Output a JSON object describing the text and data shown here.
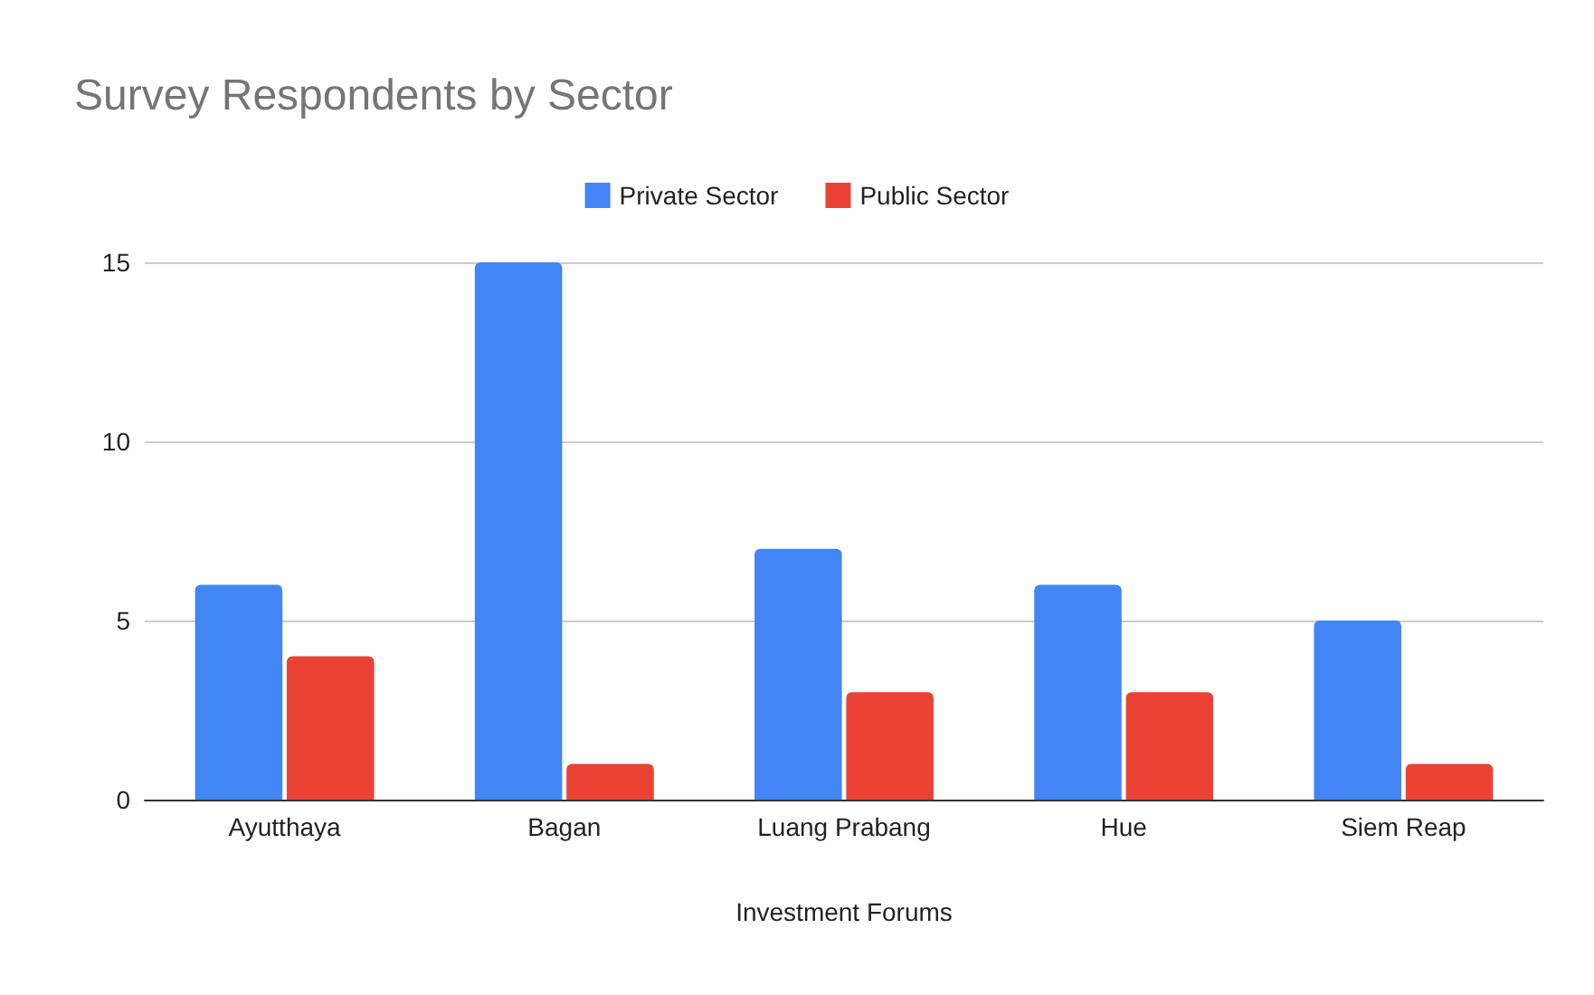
{
  "chart_data": {
    "type": "bar",
    "title": "Survey Respondents by Sector",
    "xlabel": "Investment Forums",
    "categories": [
      "Ayutthaya",
      "Bagan",
      "Luang Prabang",
      "Hue",
      "Siem Reap"
    ],
    "series": [
      {
        "name": "Private Sector",
        "color": "#4285f4",
        "values": [
          6,
          15,
          7,
          6,
          5
        ]
      },
      {
        "name": "Public Sector",
        "color": "#ea4335",
        "values": [
          4,
          1,
          3,
          3,
          1
        ]
      }
    ],
    "ylim": [
      0,
      15
    ],
    "yticks": [
      0,
      5,
      10,
      15
    ],
    "grid": "y",
    "legend": "top"
  }
}
